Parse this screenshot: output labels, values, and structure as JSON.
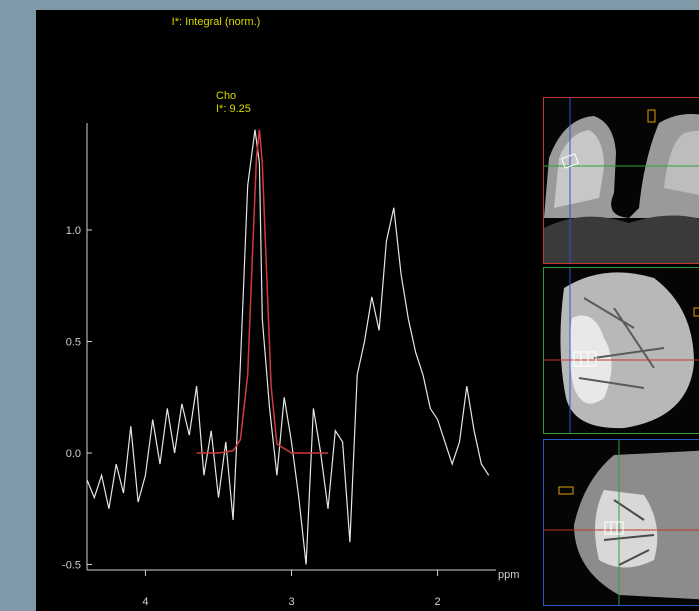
{
  "header": {
    "title": "I*: Integral (norm.)"
  },
  "peak_label": {
    "name": "Cho",
    "integral": "I*: 9.25"
  },
  "axes": {
    "x_unit": "ppm",
    "x_ticks": [
      "4",
      "3",
      "2"
    ],
    "y_ticks": [
      "1.0",
      "0.5",
      "0.0",
      "-0.5"
    ]
  },
  "colors": {
    "background": "#000000",
    "spectrum": "#e6e6e6",
    "fit": "#d23a3a",
    "label": "#d8d800",
    "panel_axial": "#c0392b",
    "panel_coronal": "#2e9e3c",
    "panel_sagittal": "#2f57c0"
  },
  "panels": [
    {
      "id": "axial",
      "border": "red"
    },
    {
      "id": "coronal",
      "border": "green"
    },
    {
      "id": "sagittal",
      "border": "blue"
    }
  ],
  "chart_data": {
    "type": "line",
    "xlabel": "ppm",
    "xlim": [
      4.4,
      1.6
    ],
    "ylim": [
      -0.5,
      1.4
    ],
    "series": [
      {
        "x": [
          4.4,
          4.35,
          4.3,
          4.25,
          4.2,
          4.15,
          4.1,
          4.05,
          4.0,
          3.95,
          3.9,
          3.85,
          3.8,
          3.75,
          3.7,
          3.65,
          3.6,
          3.55,
          3.5,
          3.45,
          3.4,
          3.35,
          3.3,
          3.25,
          3.22,
          3.2,
          3.15,
          3.1,
          3.05,
          3.0,
          2.95,
          2.9,
          2.85,
          2.8,
          2.75,
          2.7,
          2.65,
          2.6,
          2.55,
          2.5,
          2.45,
          2.4,
          2.35,
          2.3,
          2.25,
          2.2,
          2.15,
          2.1,
          2.05,
          2.0,
          1.95,
          1.9,
          1.85,
          1.8,
          1.75,
          1.7,
          1.65
        ],
        "y": [
          -0.12,
          -0.2,
          -0.1,
          -0.25,
          -0.05,
          -0.18,
          0.12,
          -0.22,
          -0.1,
          0.15,
          -0.05,
          0.2,
          0.0,
          0.22,
          0.08,
          0.3,
          -0.1,
          0.1,
          -0.2,
          0.05,
          -0.3,
          0.4,
          1.2,
          1.45,
          1.3,
          0.6,
          0.2,
          -0.1,
          0.25,
          0.05,
          -0.2,
          -0.5,
          0.2,
          0.0,
          -0.25,
          0.1,
          0.05,
          -0.4,
          0.35,
          0.5,
          0.7,
          0.55,
          0.95,
          1.1,
          0.8,
          0.6,
          0.45,
          0.35,
          0.2,
          0.15,
          0.05,
          -0.05,
          0.05,
          0.3,
          0.1,
          -0.05,
          -0.1
        ]
      },
      {
        "x": [
          3.65,
          3.5,
          3.4,
          3.35,
          3.3,
          3.27,
          3.24,
          3.22,
          3.2,
          3.17,
          3.14,
          3.1,
          3.0,
          2.9,
          2.75
        ],
        "y": [
          0.0,
          0.0,
          0.01,
          0.06,
          0.35,
          0.85,
          1.32,
          1.45,
          1.3,
          0.8,
          0.3,
          0.04,
          0.0,
          0.0,
          0.0
        ]
      }
    ]
  }
}
